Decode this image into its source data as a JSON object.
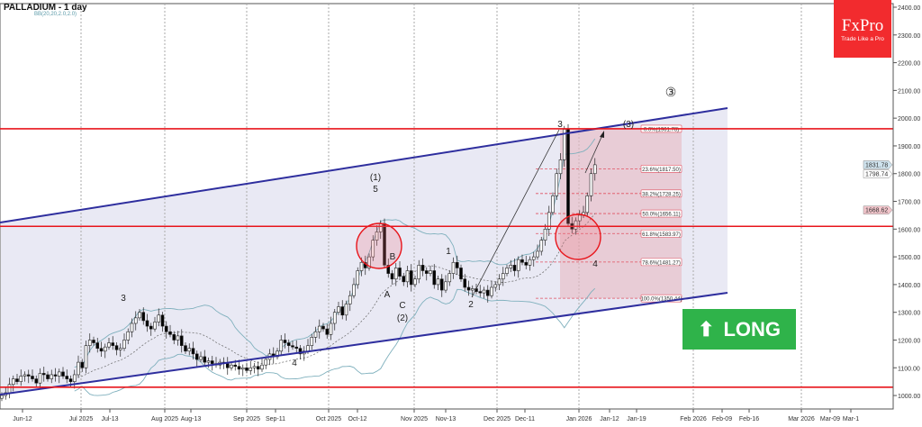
{
  "header": {
    "title": "PALLADIUM - 1 day",
    "indicator": "BB(20,20,2.0,2.0)"
  },
  "logo": {
    "brand": "FxPro",
    "tagline": "Trade Like a Pro",
    "color": "#f22b2e"
  },
  "signal": {
    "label": "LONG",
    "icon": "arrow-up-icon",
    "color": "#2fb34a"
  },
  "chart_data": {
    "type": "candlestick",
    "title": "PALLADIUM - 1 day",
    "ylim": [
      980,
      2420
    ],
    "y_ticks": [
      "1000.00",
      "1100.00",
      "1200.00",
      "1300.00",
      "1400.00",
      "1500.00",
      "1600.00",
      "1700.00",
      "1800.00",
      "1900.00",
      "2000.00",
      "2100.00",
      "2200.00",
      "2300.00",
      "2400.00"
    ],
    "x_ticks": [
      "Jun-12",
      "Jul 2025",
      "Jul-13",
      "Aug 2025",
      "Aug-13",
      "Sep 2025",
      "Sep-11",
      "Oct 2025",
      "Oct-12",
      "Nov 2025",
      "Nov-13",
      "Dec 2025",
      "Dec-11",
      "Jan 2026",
      "Jan-12",
      "Jan-19",
      "Feb 2026",
      "Feb-09",
      "Feb-16",
      "Mar 2026",
      "Mar-09",
      "Mar-1"
    ],
    "closes": [
      1000,
      1010,
      1040,
      1060,
      1050,
      1070,
      1075,
      1070,
      1060,
      1045,
      1080,
      1075,
      1060,
      1075,
      1070,
      1085,
      1070,
      1060,
      1050,
      1075,
      1120,
      1100,
      1180,
      1200,
      1190,
      1170,
      1160,
      1175,
      1190,
      1180,
      1165,
      1170,
      1200,
      1230,
      1260,
      1280,
      1300,
      1270,
      1250,
      1240,
      1265,
      1290,
      1250,
      1230,
      1220,
      1200,
      1215,
      1180,
      1160,
      1170,
      1150,
      1130,
      1140,
      1120,
      1125,
      1115,
      1110,
      1120,
      1115,
      1100,
      1110,
      1105,
      1095,
      1100,
      1090,
      1100,
      1105,
      1095,
      1110,
      1130,
      1150,
      1140,
      1160,
      1200,
      1190,
      1180,
      1175,
      1170,
      1150,
      1160,
      1180,
      1210,
      1230,
      1250,
      1240,
      1220,
      1260,
      1300,
      1320,
      1290,
      1330,
      1360,
      1400,
      1450,
      1480,
      1460,
      1500,
      1560,
      1590,
      1620,
      1470,
      1440,
      1420,
      1460,
      1430,
      1410,
      1450,
      1400,
      1420,
      1470,
      1450,
      1440,
      1450,
      1400,
      1420,
      1380,
      1410,
      1440,
      1480,
      1460,
      1420,
      1390,
      1380,
      1385,
      1375,
      1370,
      1380,
      1360,
      1390,
      1400,
      1420,
      1440,
      1460,
      1470,
      1450,
      1490,
      1480,
      1470,
      1490,
      1500,
      1520,
      1560,
      1600,
      1660,
      1720,
      1800,
      1850,
      1960,
      1620,
      1600,
      1630,
      1650,
      1660,
      1720,
      1800,
      1832
    ],
    "bollinger": {
      "period": 20,
      "deviation": 2.0
    },
    "horizontal_levels": [
      1961.78,
      1610,
      1030
    ],
    "fibonacci": [
      {
        "label": "0.0%(1961.78)",
        "value": 1961.78
      },
      {
        "label": "23.6%(1817.50)",
        "value": 1817.5
      },
      {
        "label": "38.2%(1728.25)",
        "value": 1728.25
      },
      {
        "label": "50.0%(1656.11)",
        "value": 1656.11
      },
      {
        "label": "61.8%(1583.97)",
        "value": 1583.97
      },
      {
        "label": "78.6%(1481.27)",
        "value": 1481.27
      },
      {
        "label": "100.0%(1350.44)",
        "value": 1350.44
      }
    ],
    "wave_labels": [
      "3",
      "4",
      "(1)",
      "5",
      "B",
      "A",
      "C",
      "(2)",
      "1",
      "2",
      "3",
      "(3)",
      "4",
      "③"
    ],
    "price_tags": [
      {
        "label": "1831.78",
        "color": "#cfe3ee"
      },
      {
        "label": "1798.74",
        "color": "#ffffff"
      },
      {
        "label": "1668.62",
        "color": "#f3c6cc"
      }
    ],
    "colors": {
      "channel": "#2e2e9e",
      "level": "#e8151b",
      "band": "#7fb0bd",
      "fib_zone": "#e8b9c2",
      "bull_candle": "#ffffff",
      "bear_candle": "#000000"
    }
  }
}
